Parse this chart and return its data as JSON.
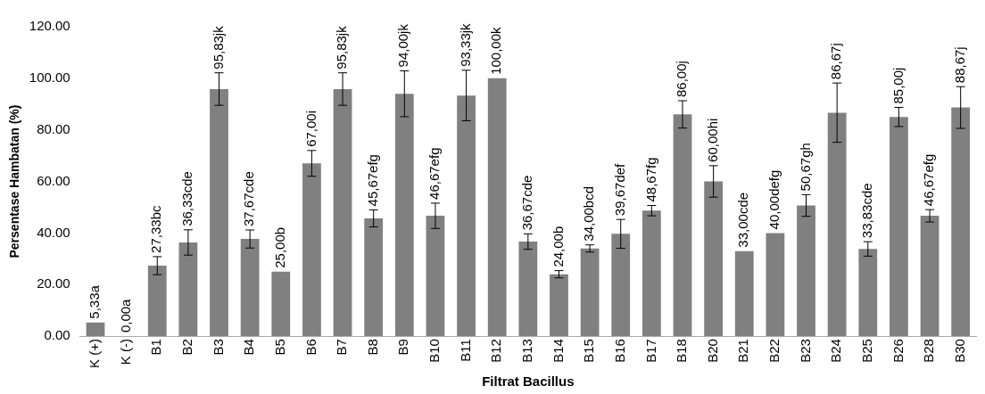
{
  "chart_data": {
    "type": "bar",
    "xlabel": "Filtrat Bacillus",
    "ylabel": "Persentase Hambatan (%)",
    "categories": [
      "K (+)",
      "K (-)",
      "B1",
      "B2",
      "B3",
      "B4",
      "B5",
      "B6",
      "B7",
      "B8",
      "B9",
      "B10",
      "B11",
      "B12",
      "B13",
      "B14",
      "B15",
      "B16",
      "B17",
      "B18",
      "B20",
      "B21",
      "B22",
      "B23",
      "B24",
      "B25",
      "B26",
      "B28",
      "B30"
    ],
    "values": [
      5.33,
      0,
      27.33,
      36.33,
      95.83,
      37.67,
      25,
      67,
      95.83,
      45.67,
      94,
      46.67,
      93.33,
      100,
      36.67,
      24,
      34,
      39.67,
      48.67,
      86,
      60,
      33,
      40,
      50.67,
      86.67,
      33.83,
      85,
      46.67,
      88.67
    ],
    "errors": [
      null,
      null,
      3.5,
      4.9,
      6.3,
      3.5,
      null,
      5,
      6.3,
      3.3,
      8.9,
      4.9,
      9.8,
      null,
      3,
      1.4,
      1.4,
      5.6,
      2,
      5.3,
      6.1,
      null,
      null,
      4.2,
      11.5,
      2.8,
      3.7,
      2.4,
      8.1
    ],
    "value_labels": [
      "5,33a",
      "0,00a",
      "27,33bc",
      "36,33cde",
      "95,83jk",
      "37,67cde",
      "25,00b",
      "67,00i",
      "95,83jk",
      "45,67efg",
      "94,00jk",
      "46,67efg",
      "93,33jk",
      "100,00k",
      "36,67cde",
      "24,00b",
      "34,00bcd",
      "39,67def",
      "48,67fg",
      "86,00j",
      "60,00hi",
      "33,00cde",
      "40,00defg",
      "50,67gh",
      "86,67j",
      "33,83cde",
      "85,00j",
      "46,67efg",
      "88,67j"
    ],
    "color": "#808080",
    "ylim": [
      0,
      120
    ],
    "yticks": [
      {
        "value": 0,
        "label": "0.00"
      },
      {
        "value": 20,
        "label": "20.00"
      },
      {
        "value": 40,
        "label": "40.00"
      },
      {
        "value": 60,
        "label": "60.00"
      },
      {
        "value": 80,
        "label": "80.00"
      },
      {
        "value": 100,
        "label": "100.00"
      },
      {
        "value": 120,
        "label": "120.00"
      }
    ],
    "grid": false,
    "legend": false
  }
}
